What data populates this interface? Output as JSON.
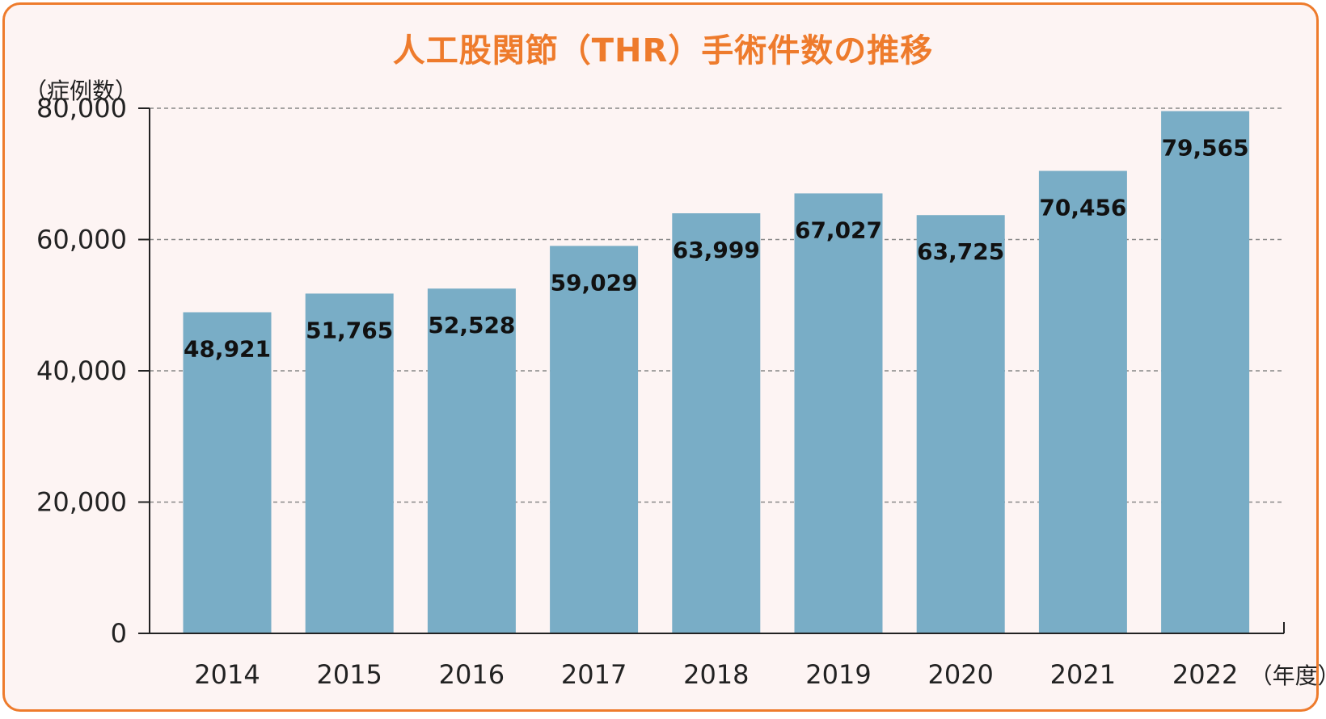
{
  "chart_data": {
    "type": "bar",
    "title": "人工股関節（THR）手術件数の推移",
    "ylabel": "（症例数）",
    "xlabel": "（年度）",
    "categories": [
      "2014",
      "2015",
      "2016",
      "2017",
      "2018",
      "2019",
      "2020",
      "2021",
      "2022"
    ],
    "values": [
      48921,
      51765,
      52528,
      59029,
      63999,
      67027,
      63725,
      70456,
      79565
    ],
    "value_labels": [
      "48,921",
      "51,765",
      "52,528",
      "59,029",
      "63,999",
      "67,027",
      "63,725",
      "70,456",
      "79,565"
    ],
    "yticks": [
      0,
      20000,
      40000,
      60000,
      80000
    ],
    "ytick_labels": [
      "0",
      "20,000",
      "40,000",
      "60,000",
      "80,000"
    ],
    "ylim": [
      0,
      80000
    ],
    "grid": true,
    "colors": {
      "bar": "#79adc6",
      "title": "#ee7b2c",
      "border": "#ee7b2c",
      "background": "#fdf4f3",
      "grid": "#888888"
    }
  }
}
